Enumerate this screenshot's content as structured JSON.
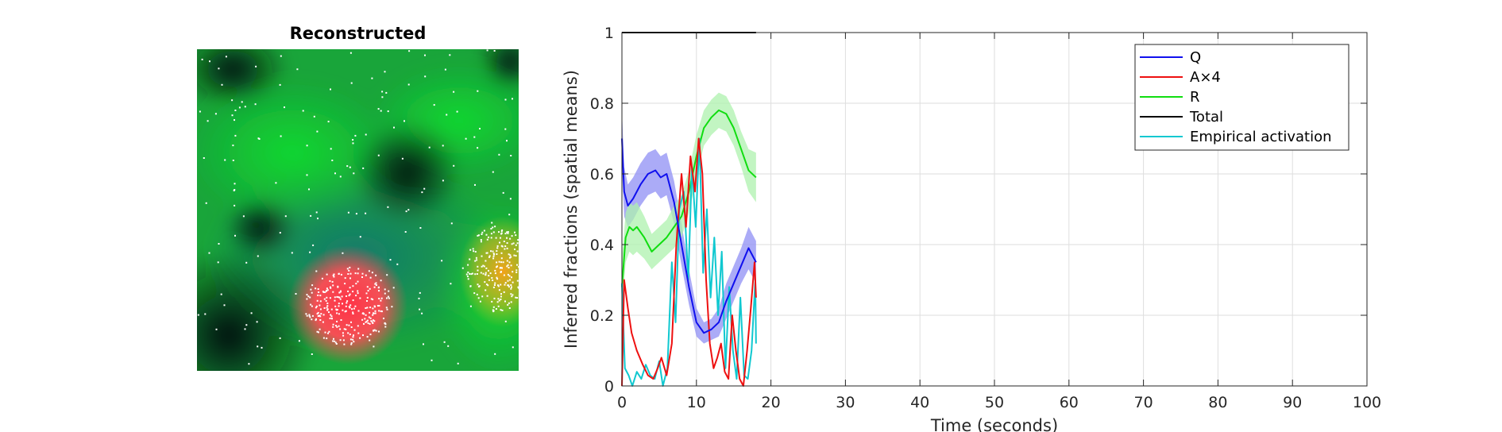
{
  "left_panel": {
    "title": "Reconstructed",
    "colors": {
      "background": "#06130c",
      "green": "#17c233",
      "teal": "#1b7f6e",
      "red_blob": "#ff4c55",
      "orange_blob": "#f4a21a",
      "points": "#ffffff"
    }
  },
  "chart_data": {
    "type": "line",
    "xlabel": "Time (seconds)",
    "ylabel": "Inferred fractions (spatial means)",
    "xlim": [
      0,
      100
    ],
    "ylim": [
      0,
      1
    ],
    "xticks": [
      0,
      10,
      20,
      30,
      40,
      50,
      60,
      70,
      80,
      90,
      100
    ],
    "yticks": [
      0,
      0.2,
      0.4,
      0.6,
      0.8,
      1
    ],
    "ytick_labels": [
      "0",
      "0.2",
      "0.4",
      "0.6",
      "0.8",
      "1"
    ],
    "grid": true,
    "legend_position": "top-right",
    "series": [
      {
        "name": "Q",
        "color": "#1010ee",
        "band_color": "#8f8ff4",
        "x": [
          0,
          0.3,
          0.8,
          1.5,
          2.5,
          3.5,
          4.5,
          5.2,
          6,
          7,
          8,
          9,
          10,
          11,
          12,
          13,
          14,
          15,
          16,
          17,
          18
        ],
        "y": [
          0.7,
          0.55,
          0.51,
          0.53,
          0.57,
          0.6,
          0.61,
          0.59,
          0.6,
          0.52,
          0.4,
          0.28,
          0.18,
          0.15,
          0.16,
          0.18,
          0.24,
          0.29,
          0.34,
          0.39,
          0.35
        ],
        "band": [
          0.08,
          0.07,
          0.06,
          0.06,
          0.06,
          0.06,
          0.06,
          0.06,
          0.06,
          0.06,
          0.06,
          0.05,
          0.04,
          0.03,
          0.03,
          0.04,
          0.05,
          0.05,
          0.05,
          0.06,
          0.06
        ]
      },
      {
        "name": "A×4",
        "color": "#ee1010",
        "x": [
          0,
          0.3,
          0.8,
          1.3,
          2,
          2.8,
          3.5,
          4.2,
          4.8,
          5.3,
          6,
          6.7,
          7.3,
          8,
          8.6,
          9.2,
          9.8,
          10.3,
          10.8,
          11.3,
          11.8,
          12.3,
          12.8,
          13.3,
          13.8,
          14.3,
          14.8,
          15.3,
          15.8,
          16.3,
          16.8,
          17.3,
          17.8,
          18
        ],
        "y": [
          0,
          0.3,
          0.22,
          0.15,
          0.1,
          0.06,
          0.03,
          0.02,
          0.05,
          0.08,
          0.03,
          0.12,
          0.4,
          0.6,
          0.45,
          0.65,
          0.55,
          0.7,
          0.6,
          0.3,
          0.12,
          0.05,
          0.08,
          0.12,
          0.04,
          0.02,
          0.2,
          0.1,
          0.02,
          0.0,
          0.1,
          0.22,
          0.35,
          0.25
        ]
      },
      {
        "name": "R",
        "color": "#10dd10",
        "band_color": "#aef2ae",
        "x": [
          0,
          0.5,
          1,
          1.5,
          2,
          3,
          4,
          5,
          6,
          7,
          8,
          9,
          10,
          11,
          12,
          13,
          14,
          15,
          16,
          17,
          18
        ],
        "y": [
          0.28,
          0.42,
          0.45,
          0.44,
          0.45,
          0.42,
          0.38,
          0.4,
          0.42,
          0.45,
          0.48,
          0.55,
          0.65,
          0.73,
          0.76,
          0.78,
          0.77,
          0.73,
          0.67,
          0.61,
          0.59
        ],
        "band": [
          0.08,
          0.07,
          0.07,
          0.07,
          0.07,
          0.06,
          0.05,
          0.05,
          0.05,
          0.06,
          0.06,
          0.06,
          0.06,
          0.05,
          0.05,
          0.05,
          0.05,
          0.05,
          0.05,
          0.06,
          0.07
        ]
      },
      {
        "name": "Total",
        "color": "#000000",
        "x": [
          0,
          18
        ],
        "y": [
          1,
          1
        ]
      },
      {
        "name": "Empirical activation",
        "color": "#10c8d0",
        "x": [
          0,
          0.4,
          0.9,
          1.4,
          2,
          2.6,
          3.2,
          3.8,
          4.4,
          5,
          5.5,
          6.1,
          6.7,
          7.2,
          7.7,
          8.3,
          8.9,
          9.4,
          9.9,
          10.4,
          10.9,
          11.4,
          11.9,
          12.4,
          12.9,
          13.4,
          13.9,
          14.4,
          14.9,
          15.4,
          15.9,
          16.4,
          16.9,
          17.4,
          17.9,
          18
        ],
        "y": [
          0.29,
          0.05,
          0.03,
          0.0,
          0.04,
          0.02,
          0.06,
          0.03,
          0.02,
          0.07,
          0.0,
          0.05,
          0.35,
          0.18,
          0.5,
          0.55,
          0.3,
          0.62,
          0.45,
          0.7,
          0.32,
          0.5,
          0.25,
          0.42,
          0.2,
          0.38,
          0.05,
          0.28,
          0.1,
          0.02,
          0.25,
          0.03,
          0.02,
          0.1,
          0.3,
          0.12
        ]
      }
    ]
  }
}
